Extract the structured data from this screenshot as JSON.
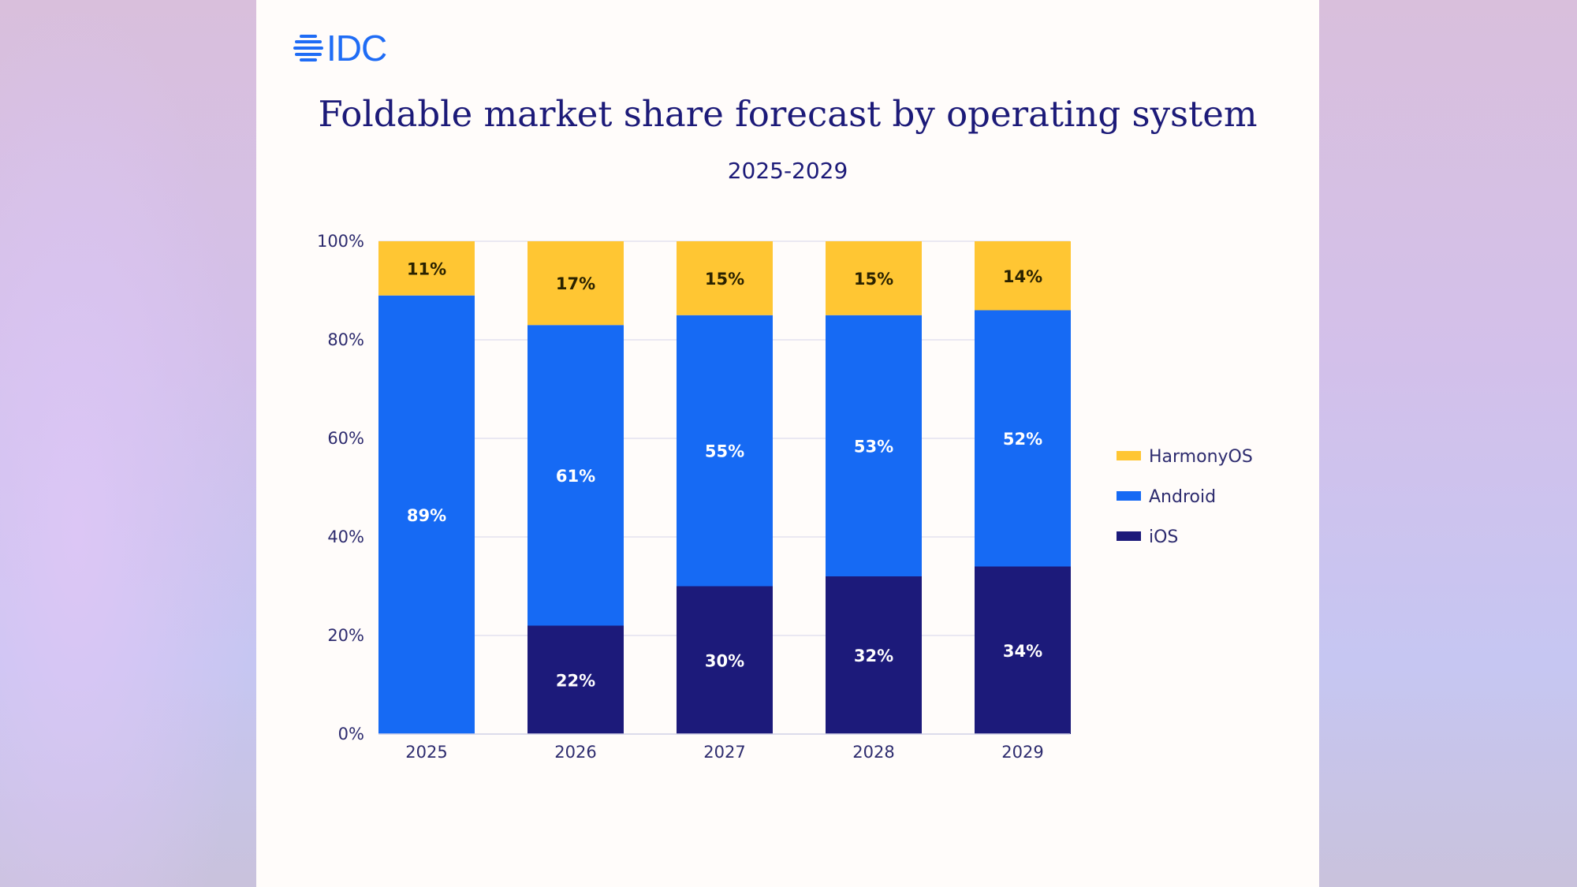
{
  "logo": {
    "text": "IDC",
    "color": "#1f6cf5"
  },
  "chart_data": {
    "type": "bar",
    "stacked": true,
    "title": "Foldable market share forecast by operating system",
    "subtitle": "2025-2029",
    "xlabel": "",
    "ylabel": "",
    "categories": [
      "2025",
      "2026",
      "2027",
      "2028",
      "2029"
    ],
    "ylim": [
      0,
      100
    ],
    "yticks": [
      "0%",
      "20%",
      "40%",
      "60%",
      "80%",
      "100%"
    ],
    "grid": true,
    "legend_position": "right",
    "series": [
      {
        "name": "iOS",
        "color": "#1c1a7a",
        "values": [
          0,
          22,
          30,
          32,
          34
        ],
        "labels": [
          "",
          "22%",
          "30%",
          "32%",
          "34%"
        ]
      },
      {
        "name": "Android",
        "color": "#166af4",
        "values": [
          89,
          61,
          55,
          53,
          52
        ],
        "labels": [
          "89%",
          "61%",
          "55%",
          "53%",
          "52%"
        ]
      },
      {
        "name": "HarmonyOS",
        "color": "#ffc633",
        "values": [
          11,
          17,
          15,
          15,
          14
        ],
        "labels": [
          "11%",
          "17%",
          "15%",
          "15%",
          "14%"
        ]
      }
    ]
  }
}
